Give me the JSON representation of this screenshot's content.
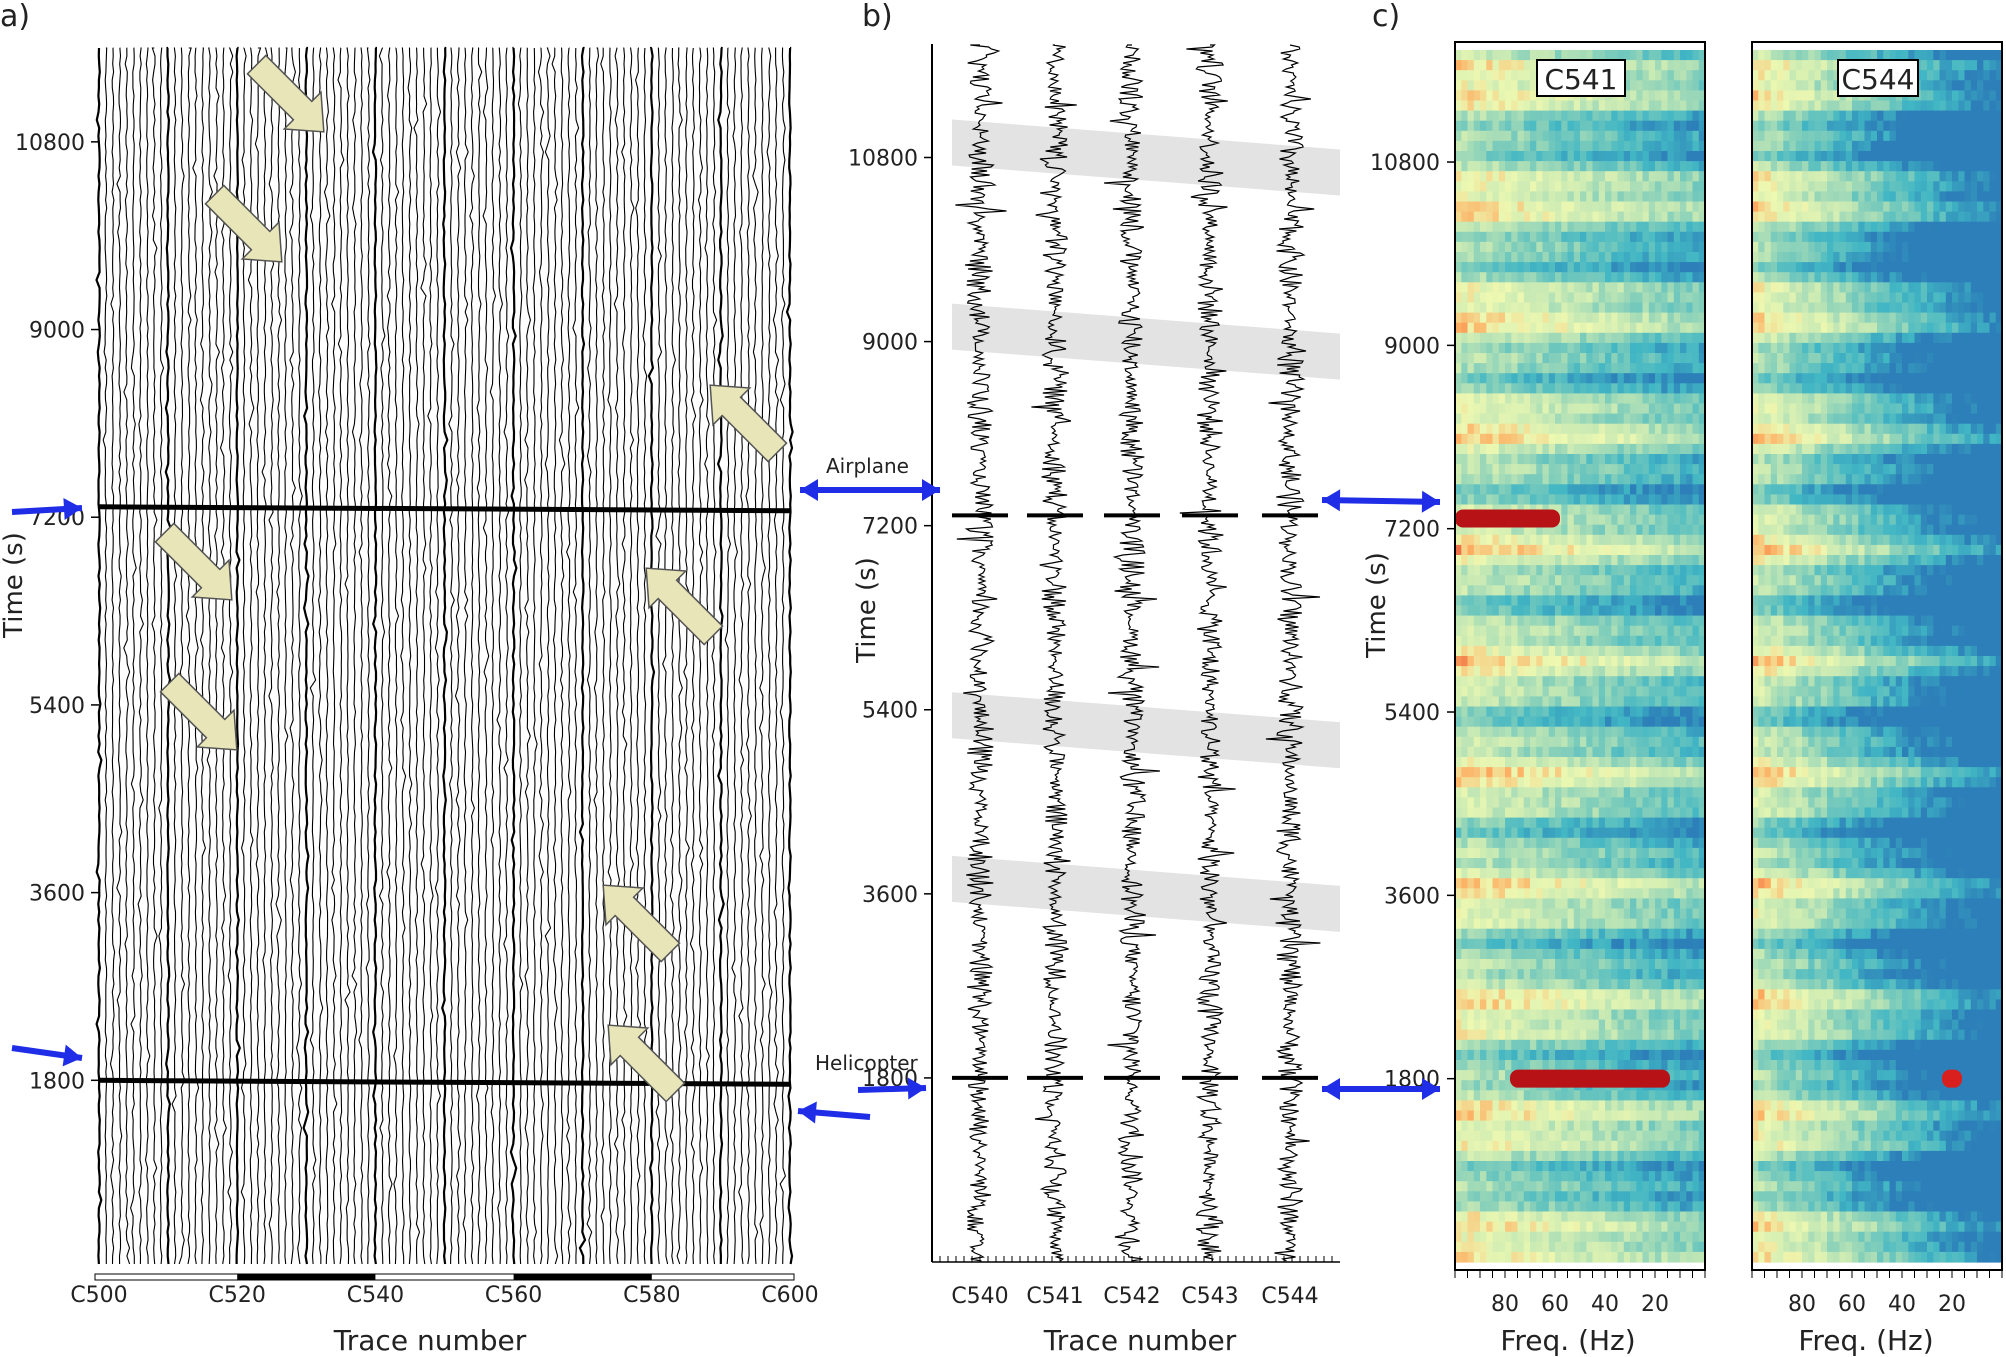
{
  "figure": {
    "panels": [
      "a)",
      "b)",
      "c)"
    ],
    "annotations": {
      "airplane": "Airplane",
      "helicopter": "Helicopter"
    },
    "colors": {
      "trace": "#000000",
      "arrow_blue": "#1f2ee6",
      "arrow_khaki": "#e8e6b8",
      "highlight": "#cccccc"
    }
  },
  "chart_data": [
    {
      "type": "line",
      "title": "a)",
      "xlabel": "Trace number",
      "ylabel": "Time (s)",
      "x_tick_labels": [
        "C500",
        "C520",
        "C540",
        "C560",
        "C580",
        "C600"
      ],
      "y_ticks": [
        1800,
        3600,
        5400,
        7200,
        9000,
        10800
      ],
      "ylim": [
        0,
        11700
      ],
      "trace_range": [
        500,
        600
      ],
      "events": [
        {
          "name": "Helicopter",
          "time": 1800
        },
        {
          "name": "Airplane",
          "time": 7300
        }
      ]
    },
    {
      "type": "line",
      "title": "b)",
      "xlabel": "Trace number",
      "ylabel": "Time (s)",
      "series": [
        {
          "name": "C540"
        },
        {
          "name": "C541"
        },
        {
          "name": "C542"
        },
        {
          "name": "C543"
        },
        {
          "name": "C544"
        }
      ],
      "y_ticks": [
        1800,
        3600,
        5400,
        7200,
        9000,
        10800
      ],
      "ylim": [
        0,
        11900
      ],
      "highlight_bands_center_s": [
        10800,
        9000,
        5200,
        3600
      ]
    },
    {
      "type": "heatmap",
      "title": "c)",
      "xlabel": "Freq. (Hz)",
      "ylabel": "Time (s)",
      "x_ticks": [
        80,
        60,
        40,
        20
      ],
      "xlim": [
        100,
        0
      ],
      "y_ticks": [
        1800,
        3600,
        5400,
        7200,
        9000,
        10800
      ],
      "ylim": [
        0,
        11900
      ],
      "panels": [
        {
          "name": "C541"
        },
        {
          "name": "C544"
        }
      ],
      "colormap": [
        "#2c7fb8",
        "#41b6c4",
        "#7fcdbb",
        "#c7e9b4",
        "#edf8b1",
        "#fdae61",
        "#d7191c",
        "#a50f15"
      ]
    }
  ]
}
